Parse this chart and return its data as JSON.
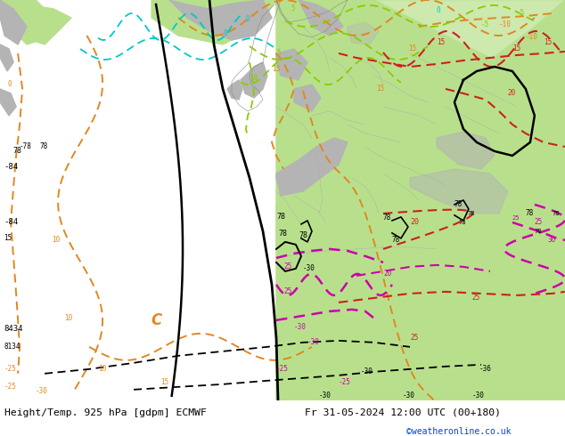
{
  "title_left": "Height/Temp. 925 hPa [gdpm] ECMWF",
  "title_right": "Fr 31-05-2024 12:00 UTC (00+180)",
  "watermark": "©weatheronline.co.uk",
  "fig_width": 6.34,
  "fig_height": 4.9,
  "dpi": 100,
  "bg_ocean": "#d0cece",
  "bg_land_green": "#b8e08c",
  "bg_land_gray": "#b4b4b4",
  "bg_land_light": "#c8c8c0",
  "black": "#000000",
  "orange": "#e08820",
  "cyan": "#00c8c8",
  "lime": "#88cc00",
  "red": "#cc2020",
  "magenta": "#cc00aa",
  "bottom_bg": "#ffffff",
  "bottom_text": "#000000",
  "watermark_color": "#0044cc"
}
